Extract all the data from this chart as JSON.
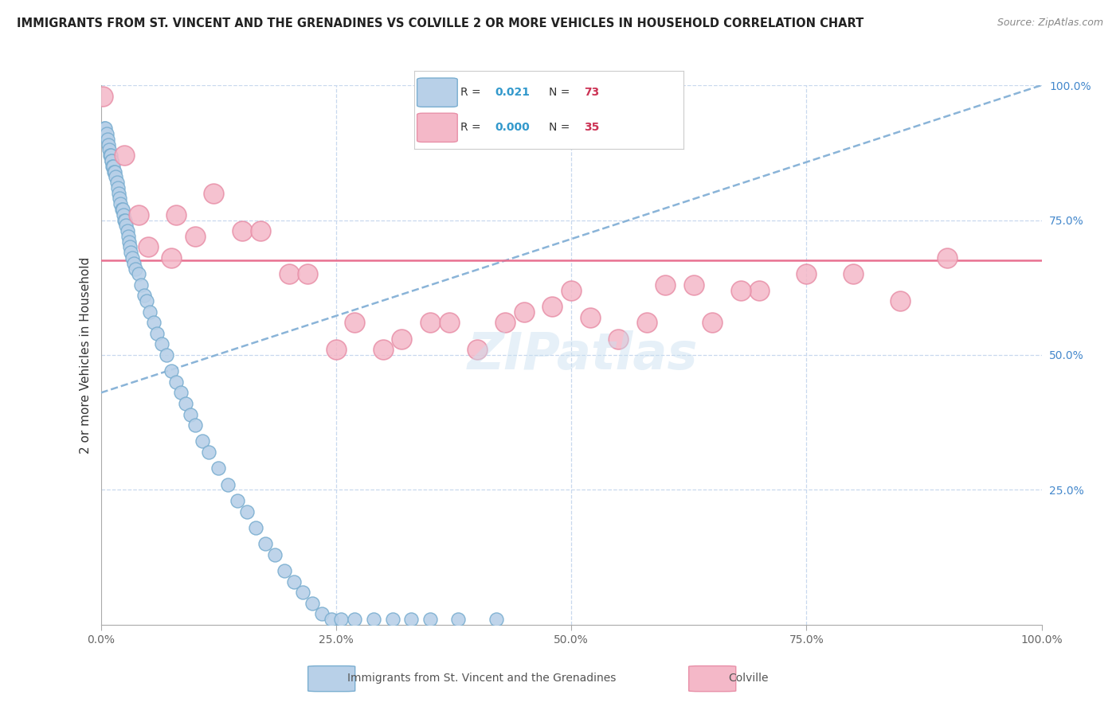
{
  "title": "IMMIGRANTS FROM ST. VINCENT AND THE GRENADINES VS COLVILLE 2 OR MORE VEHICLES IN HOUSEHOLD CORRELATION CHART",
  "source": "Source: ZipAtlas.com",
  "ylabel": "2 or more Vehicles in Household",
  "legend_blue_r": "0.021",
  "legend_blue_n": "73",
  "legend_pink_r": "0.000",
  "legend_pink_n": "35",
  "legend_blue_label": "Immigrants from St. Vincent and the Grenadines",
  "legend_pink_label": "Colville",
  "blue_face": "#b8d0e8",
  "blue_edge": "#7aaed0",
  "pink_face": "#f4b8c8",
  "pink_edge": "#e890a8",
  "trendline_blue": "#8ab4d8",
  "trendline_pink": "#e87090",
  "grid_color": "#c8d8ee",
  "bg_color": "#ffffff",
  "blue_x": [
    0.3,
    0.4,
    0.5,
    0.6,
    0.7,
    0.8,
    0.9,
    1.0,
    1.05,
    1.1,
    1.15,
    1.2,
    1.3,
    1.4,
    1.5,
    1.6,
    1.7,
    1.8,
    1.9,
    2.0,
    2.1,
    2.2,
    2.3,
    2.4,
    2.5,
    2.6,
    2.7,
    2.8,
    2.9,
    3.0,
    3.1,
    3.2,
    3.3,
    3.5,
    3.7,
    4.0,
    4.3,
    4.6,
    4.9,
    5.2,
    5.6,
    6.0,
    6.5,
    7.0,
    7.5,
    8.0,
    8.5,
    9.0,
    9.5,
    10.0,
    10.8,
    11.5,
    12.5,
    13.5,
    14.5,
    15.5,
    16.5,
    17.5,
    18.5,
    19.5,
    20.5,
    21.5,
    22.5,
    23.5,
    24.5,
    25.5,
    27.0,
    29.0,
    31.0,
    33.0,
    35.0,
    38.0,
    42.0
  ],
  "blue_y": [
    91,
    92,
    92,
    91,
    90,
    89,
    88,
    87,
    87,
    86,
    86,
    85,
    85,
    84,
    84,
    83,
    82,
    81,
    80,
    79,
    78,
    77,
    77,
    76,
    75,
    75,
    74,
    73,
    72,
    71,
    70,
    69,
    68,
    67,
    66,
    65,
    63,
    61,
    60,
    58,
    56,
    54,
    52,
    50,
    47,
    45,
    43,
    41,
    39,
    37,
    34,
    32,
    29,
    26,
    23,
    21,
    18,
    15,
    13,
    10,
    8,
    6,
    4,
    2,
    1,
    1,
    1,
    1,
    1,
    1,
    1,
    1,
    1
  ],
  "pink_x": [
    0.2,
    2.5,
    5.0,
    7.5,
    10.0,
    15.0,
    20.0,
    25.0,
    30.0,
    35.0,
    40.0,
    45.0,
    50.0,
    55.0,
    60.0,
    65.0,
    70.0,
    75.0,
    80.0,
    85.0,
    90.0,
    4.0,
    8.0,
    12.0,
    17.0,
    22.0,
    27.0,
    32.0,
    37.0,
    43.0,
    48.0,
    52.0,
    58.0,
    63.0,
    68.0
  ],
  "pink_y": [
    98,
    87,
    70,
    68,
    72,
    73,
    65,
    51,
    51,
    56,
    51,
    58,
    62,
    53,
    63,
    56,
    62,
    65,
    65,
    60,
    68,
    76,
    76,
    80,
    73,
    65,
    56,
    53,
    56,
    56,
    59,
    57,
    56,
    63,
    62
  ],
  "pink_trend_y": 67.5,
  "blue_trend_x": [
    0.0,
    100.0
  ],
  "blue_trend_y": [
    43.0,
    100.0
  ],
  "xlim": [
    0,
    100
  ],
  "ylim": [
    0,
    100
  ],
  "yticks_right": [
    25.0,
    50.0,
    75.0,
    100.0
  ],
  "xtick_vals": [
    0,
    25,
    50,
    75,
    100
  ],
  "xtick_labels": [
    "0.0%",
    "25.0%",
    "50.0%",
    "75.0%",
    "100.0%"
  ]
}
